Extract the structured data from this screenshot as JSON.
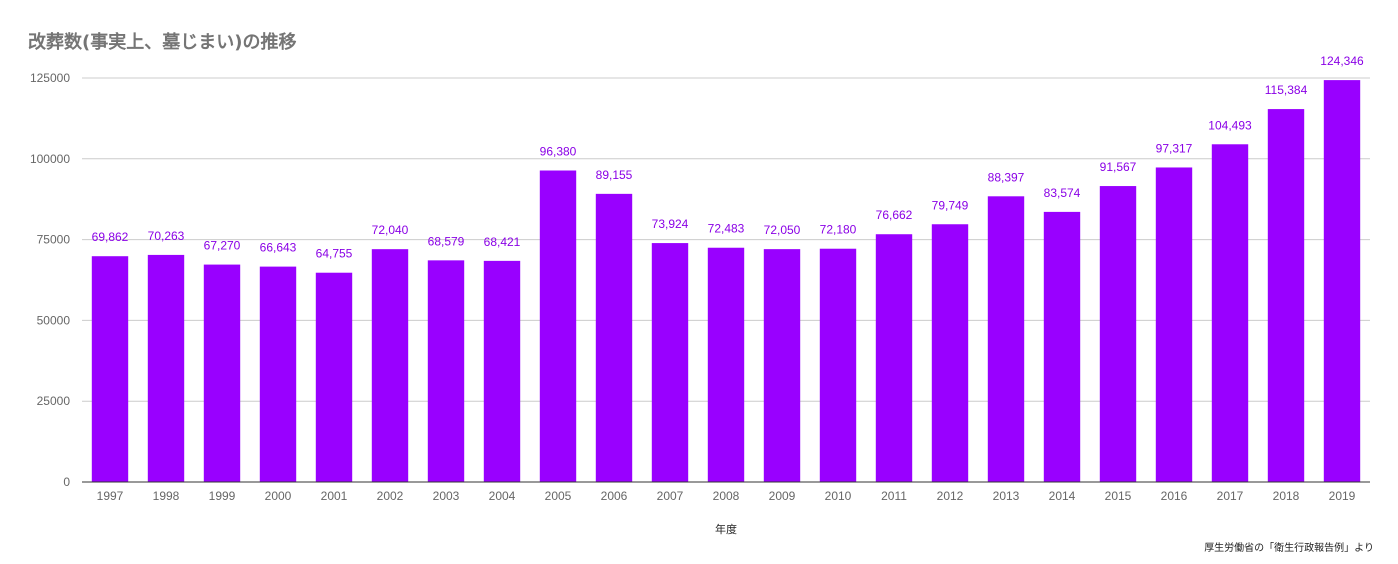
{
  "chart_data": {
    "type": "bar",
    "title": "改葬数(事実上、墓じまい)の推移",
    "xlabel": "年度",
    "ylabel": "",
    "categories": [
      "1997",
      "1998",
      "1999",
      "2000",
      "2001",
      "2002",
      "2003",
      "2004",
      "2005",
      "2006",
      "2007",
      "2008",
      "2009",
      "2010",
      "2011",
      "2012",
      "2013",
      "2014",
      "2015",
      "2016",
      "2017",
      "2018",
      "2019"
    ],
    "values": [
      69862,
      70263,
      67270,
      66643,
      64755,
      72040,
      68579,
      68421,
      96380,
      89155,
      73924,
      72483,
      72050,
      72180,
      76662,
      79749,
      88397,
      83574,
      91567,
      97317,
      104493,
      115384,
      124346
    ],
    "value_labels": [
      "69,862",
      "70,263",
      "67,270",
      "66,643",
      "64,755",
      "72,040",
      "68,579",
      "68,421",
      "96,380",
      "89,155",
      "73,924",
      "72,483",
      "72,050",
      "72,180",
      "76,662",
      "79,749",
      "88,397",
      "83,574",
      "91,567",
      "97,317",
      "104,493",
      "115,384",
      "124,346"
    ],
    "ylim": [
      0,
      125000
    ],
    "yticks": [
      0,
      25000,
      50000,
      75000,
      100000,
      125000
    ],
    "ytick_labels": [
      "0",
      "25000",
      "50000",
      "75000",
      "100000",
      "125000"
    ],
    "grid": true,
    "legend": "none",
    "bar_color": "#9900ff",
    "label_color": "#8a00e6",
    "grid_color": "#cccccc",
    "source": "厚生労働省の「衛生行政報告例」より"
  }
}
